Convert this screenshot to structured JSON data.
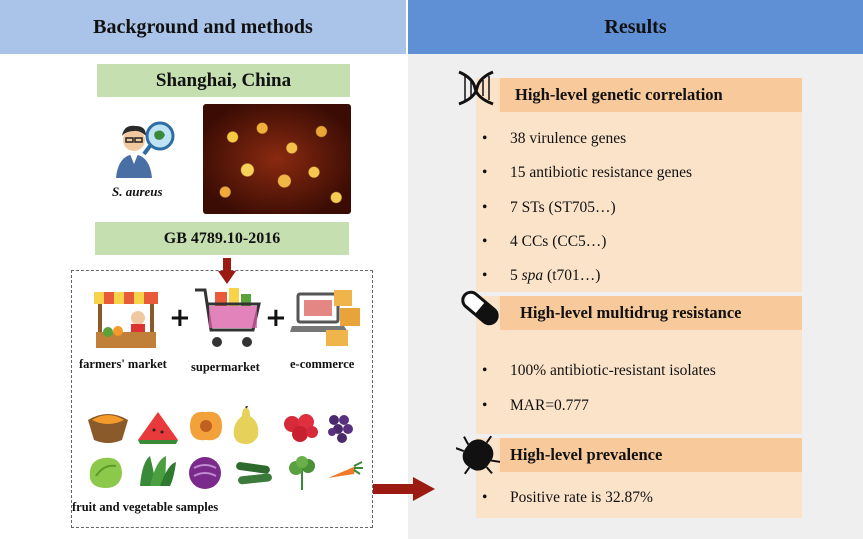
{
  "left": {
    "header": "Background and methods",
    "location": "Shanghai, China",
    "species": "S. aureus",
    "standard": "GB 4789.10-2016",
    "sources": [
      {
        "label": "farmers' market",
        "icon": "market-stall-icon"
      },
      {
        "label": "supermarket",
        "icon": "shopping-cart-icon"
      },
      {
        "label": "e-commerce",
        "icon": "laptop-parcel-icon"
      }
    ],
    "plus_sign": "+",
    "samples_label": "",
    "samples_tail": "fruit and vegetable samples",
    "produce_icons": [
      "papaya-icon",
      "watermelon-icon",
      "peach-icon",
      "pear-icon",
      "strawberry-icon",
      "grape-icon",
      "lettuce-icon",
      "greens-icon",
      "cabbage-icon",
      "cucumber-icon",
      "herb-icon",
      "carrot-icon"
    ]
  },
  "right": {
    "header": "Results",
    "sections": [
      {
        "title": "High-level genetic correlation",
        "icon": "dna-icon",
        "bullets": [
          {
            "text": "38 virulence genes"
          },
          {
            "text": "15 antibiotic resistance genes"
          },
          {
            "text": "7 STs (ST705…)"
          },
          {
            "text": "4 CCs (CC5…)"
          },
          {
            "prefix": "5 ",
            "italic": "spa",
            "suffix": " (t701…)"
          }
        ]
      },
      {
        "title": "High-level multidrug resistance",
        "icon": "capsule-icon",
        "bullets": [
          {
            "text": "100% antibiotic-resistant isolates"
          },
          {
            "text": "MAR=0.777"
          }
        ]
      },
      {
        "title": "High-level prevalence",
        "icon": "bacterium-icon",
        "bullets": [
          {
            "text": "Positive rate is 32.87%"
          }
        ]
      }
    ],
    "bullet_char": "•"
  },
  "colors": {
    "left_header": "#a9c4e8",
    "right_header": "#5f8fd5",
    "green_box": "#c6dfb0",
    "result_block": "#fbe3c9",
    "result_title": "#f7c99b",
    "arrow": "#9b1a12"
  }
}
